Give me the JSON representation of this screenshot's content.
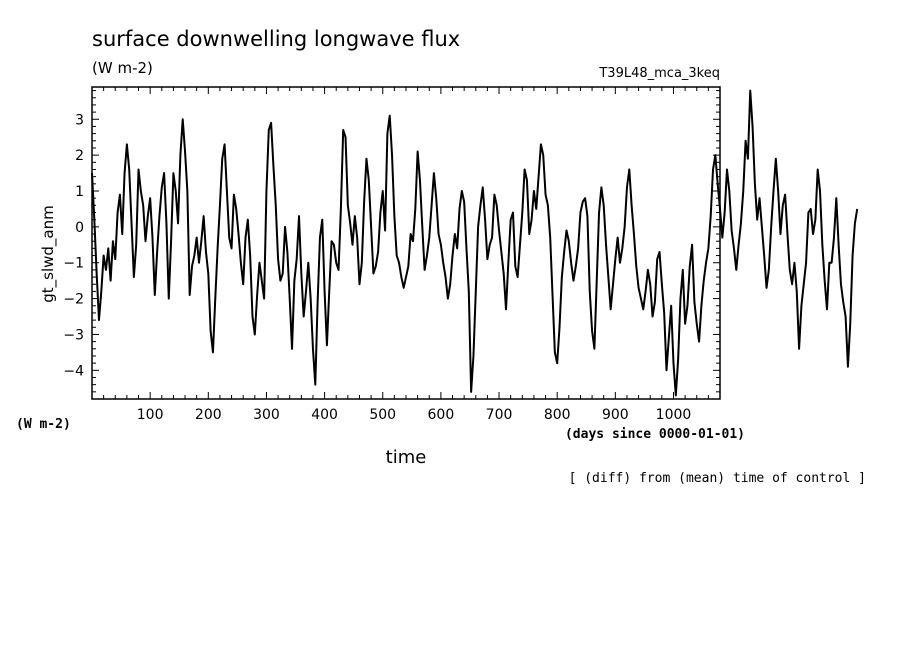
{
  "chart_data": {
    "type": "line",
    "title": "surface downwelling longwave flux",
    "units_label": "(W m-2)",
    "experiment_label": "T39L48_mca_3keq",
    "ylabel": "gt_slwd_anm",
    "yunits_label": "(W m-2)",
    "xlabel": "time",
    "xunits_label": "(days since 0000-01-01)",
    "note": "[ (diff) from (mean) time of control ]",
    "xlim": [
      0,
      1080
    ],
    "ylim": [
      -4.8,
      3.9
    ],
    "x_ticks": [
      100,
      200,
      300,
      400,
      500,
      600,
      700,
      800,
      900,
      1000
    ],
    "y_ticks": [
      3,
      2,
      1,
      0,
      -1,
      -2,
      -3,
      -4
    ],
    "x_start": 0,
    "x_step": 4,
    "series": [
      {
        "values": [
          1.5,
          0.2,
          -1.3,
          -2.6,
          -1.8,
          -0.8,
          -1.2,
          -0.6,
          -1.5,
          -0.4,
          -0.9,
          0.4,
          0.9,
          -0.2,
          1.5,
          2.3,
          1.6,
          0.1,
          -1.4,
          -0.5,
          1.6,
          1.0,
          0.6,
          -0.4,
          0.3,
          0.8,
          -0.3,
          -1.9,
          -0.7,
          0.3,
          1.1,
          1.5,
          0.1,
          -2.0,
          -0.4,
          1.5,
          1.0,
          0.1,
          2.0,
          3.0,
          2.1,
          1.0,
          -1.9,
          -1.1,
          -0.8,
          -0.3,
          -1.0,
          -0.4,
          0.3,
          -0.7,
          -1.3,
          -2.9,
          -3.5,
          -2.0,
          -0.6,
          0.6,
          1.9,
          2.3,
          1.0,
          -0.3,
          -0.6,
          0.9,
          0.5,
          -0.2,
          -1.0,
          -1.6,
          -0.3,
          0.2,
          -0.8,
          -2.5,
          -3.0,
          -1.9,
          -1.0,
          -1.5,
          -2.0,
          1.0,
          2.7,
          2.9,
          1.7,
          0.6,
          -0.9,
          -1.5,
          -1.3,
          0.0,
          -0.7,
          -2.0,
          -3.4,
          -1.5,
          -0.9,
          0.3,
          -1.3,
          -2.5,
          -1.8,
          -1.0,
          -2.0,
          -3.4,
          -4.4,
          -2.1,
          -0.3,
          0.2,
          -1.8,
          -3.3,
          -1.8,
          -0.4,
          -0.5,
          -1.0,
          -1.2,
          0.5,
          2.7,
          2.5,
          0.6,
          0.1,
          -0.5,
          0.3,
          -0.3,
          -1.6,
          -1.0,
          0.7,
          1.9,
          1.3,
          0.0,
          -1.3,
          -1.1,
          -0.7,
          0.4,
          1.0,
          -0.1,
          2.6,
          3.1,
          2.0,
          0.3,
          -0.8,
          -1.0,
          -1.4,
          -1.7,
          -1.4,
          -1.1,
          -0.2,
          -0.4,
          0.5,
          2.1,
          1.3,
          0.0,
          -1.2,
          -0.8,
          -0.3,
          0.6,
          1.5,
          0.8,
          -0.2,
          -0.5,
          -1.0,
          -1.4,
          -2.0,
          -1.6,
          -0.8,
          -0.2,
          -0.6,
          0.5,
          1.0,
          0.7,
          -0.6,
          -1.8,
          -4.6,
          -3.6,
          -1.8,
          0.0,
          0.6,
          1.1,
          0.2,
          -0.9,
          -0.5,
          -0.3,
          0.9,
          0.6,
          -0.1,
          -0.7,
          -1.3,
          -2.3,
          -1.0,
          0.2,
          0.4,
          -1.1,
          -1.4,
          -0.5,
          0.4,
          1.6,
          1.3,
          -0.2,
          0.2,
          1.0,
          0.5,
          1.4,
          2.3,
          2.0,
          0.9,
          0.6,
          -0.3,
          -1.9,
          -3.5,
          -3.8,
          -2.8,
          -1.4,
          -0.7,
          -0.1,
          -0.4,
          -1.0,
          -1.5,
          -1.1,
          -0.6,
          0.4,
          0.7,
          0.8,
          0.3,
          -1.8,
          -2.9,
          -3.4,
          -1.5,
          0.4,
          1.1,
          0.6,
          -0.5,
          -1.4,
          -2.3,
          -1.6,
          -0.9,
          -0.3,
          -1.0,
          -0.6,
          0.0,
          1.1,
          1.6,
          0.6,
          -0.2,
          -1.1,
          -1.7,
          -2.0,
          -2.3,
          -1.8,
          -1.2,
          -1.6,
          -2.5,
          -2.1,
          -0.9,
          -0.7,
          -1.6,
          -2.4,
          -4.0,
          -3.1,
          -2.2,
          -3.8,
          -4.7,
          -3.7,
          -2.0,
          -1.2,
          -2.7,
          -2.2,
          -1.1,
          -0.5,
          -2.1,
          -2.7,
          -3.2,
          -2.2,
          -1.5,
          -1.0,
          -0.6,
          0.3,
          1.6,
          2.0,
          1.2,
          0.5,
          -0.3,
          0.4,
          1.6,
          1.0,
          -0.1,
          -0.6,
          -1.2,
          -0.5,
          0.1,
          1.0,
          2.4,
          1.9,
          3.8,
          2.8,
          1.2,
          0.2,
          0.8,
          0.0,
          -0.8,
          -1.7,
          -1.2,
          0.0,
          1.0,
          1.9,
          1.0,
          -0.2,
          0.6,
          0.9,
          -0.2,
          -1.2,
          -1.6,
          -1.0,
          -1.8,
          -3.4,
          -2.2,
          -1.6,
          -1.0,
          0.4,
          0.5,
          -0.2,
          0.2,
          1.6,
          1.0,
          -0.5,
          -1.5,
          -2.3,
          -1.0,
          -1.0,
          -0.3,
          0.8,
          -0.5,
          -1.6,
          -2.1,
          -2.5,
          -3.9,
          -2.7,
          -0.8,
          0.1,
          0.5
        ]
      }
    ]
  }
}
